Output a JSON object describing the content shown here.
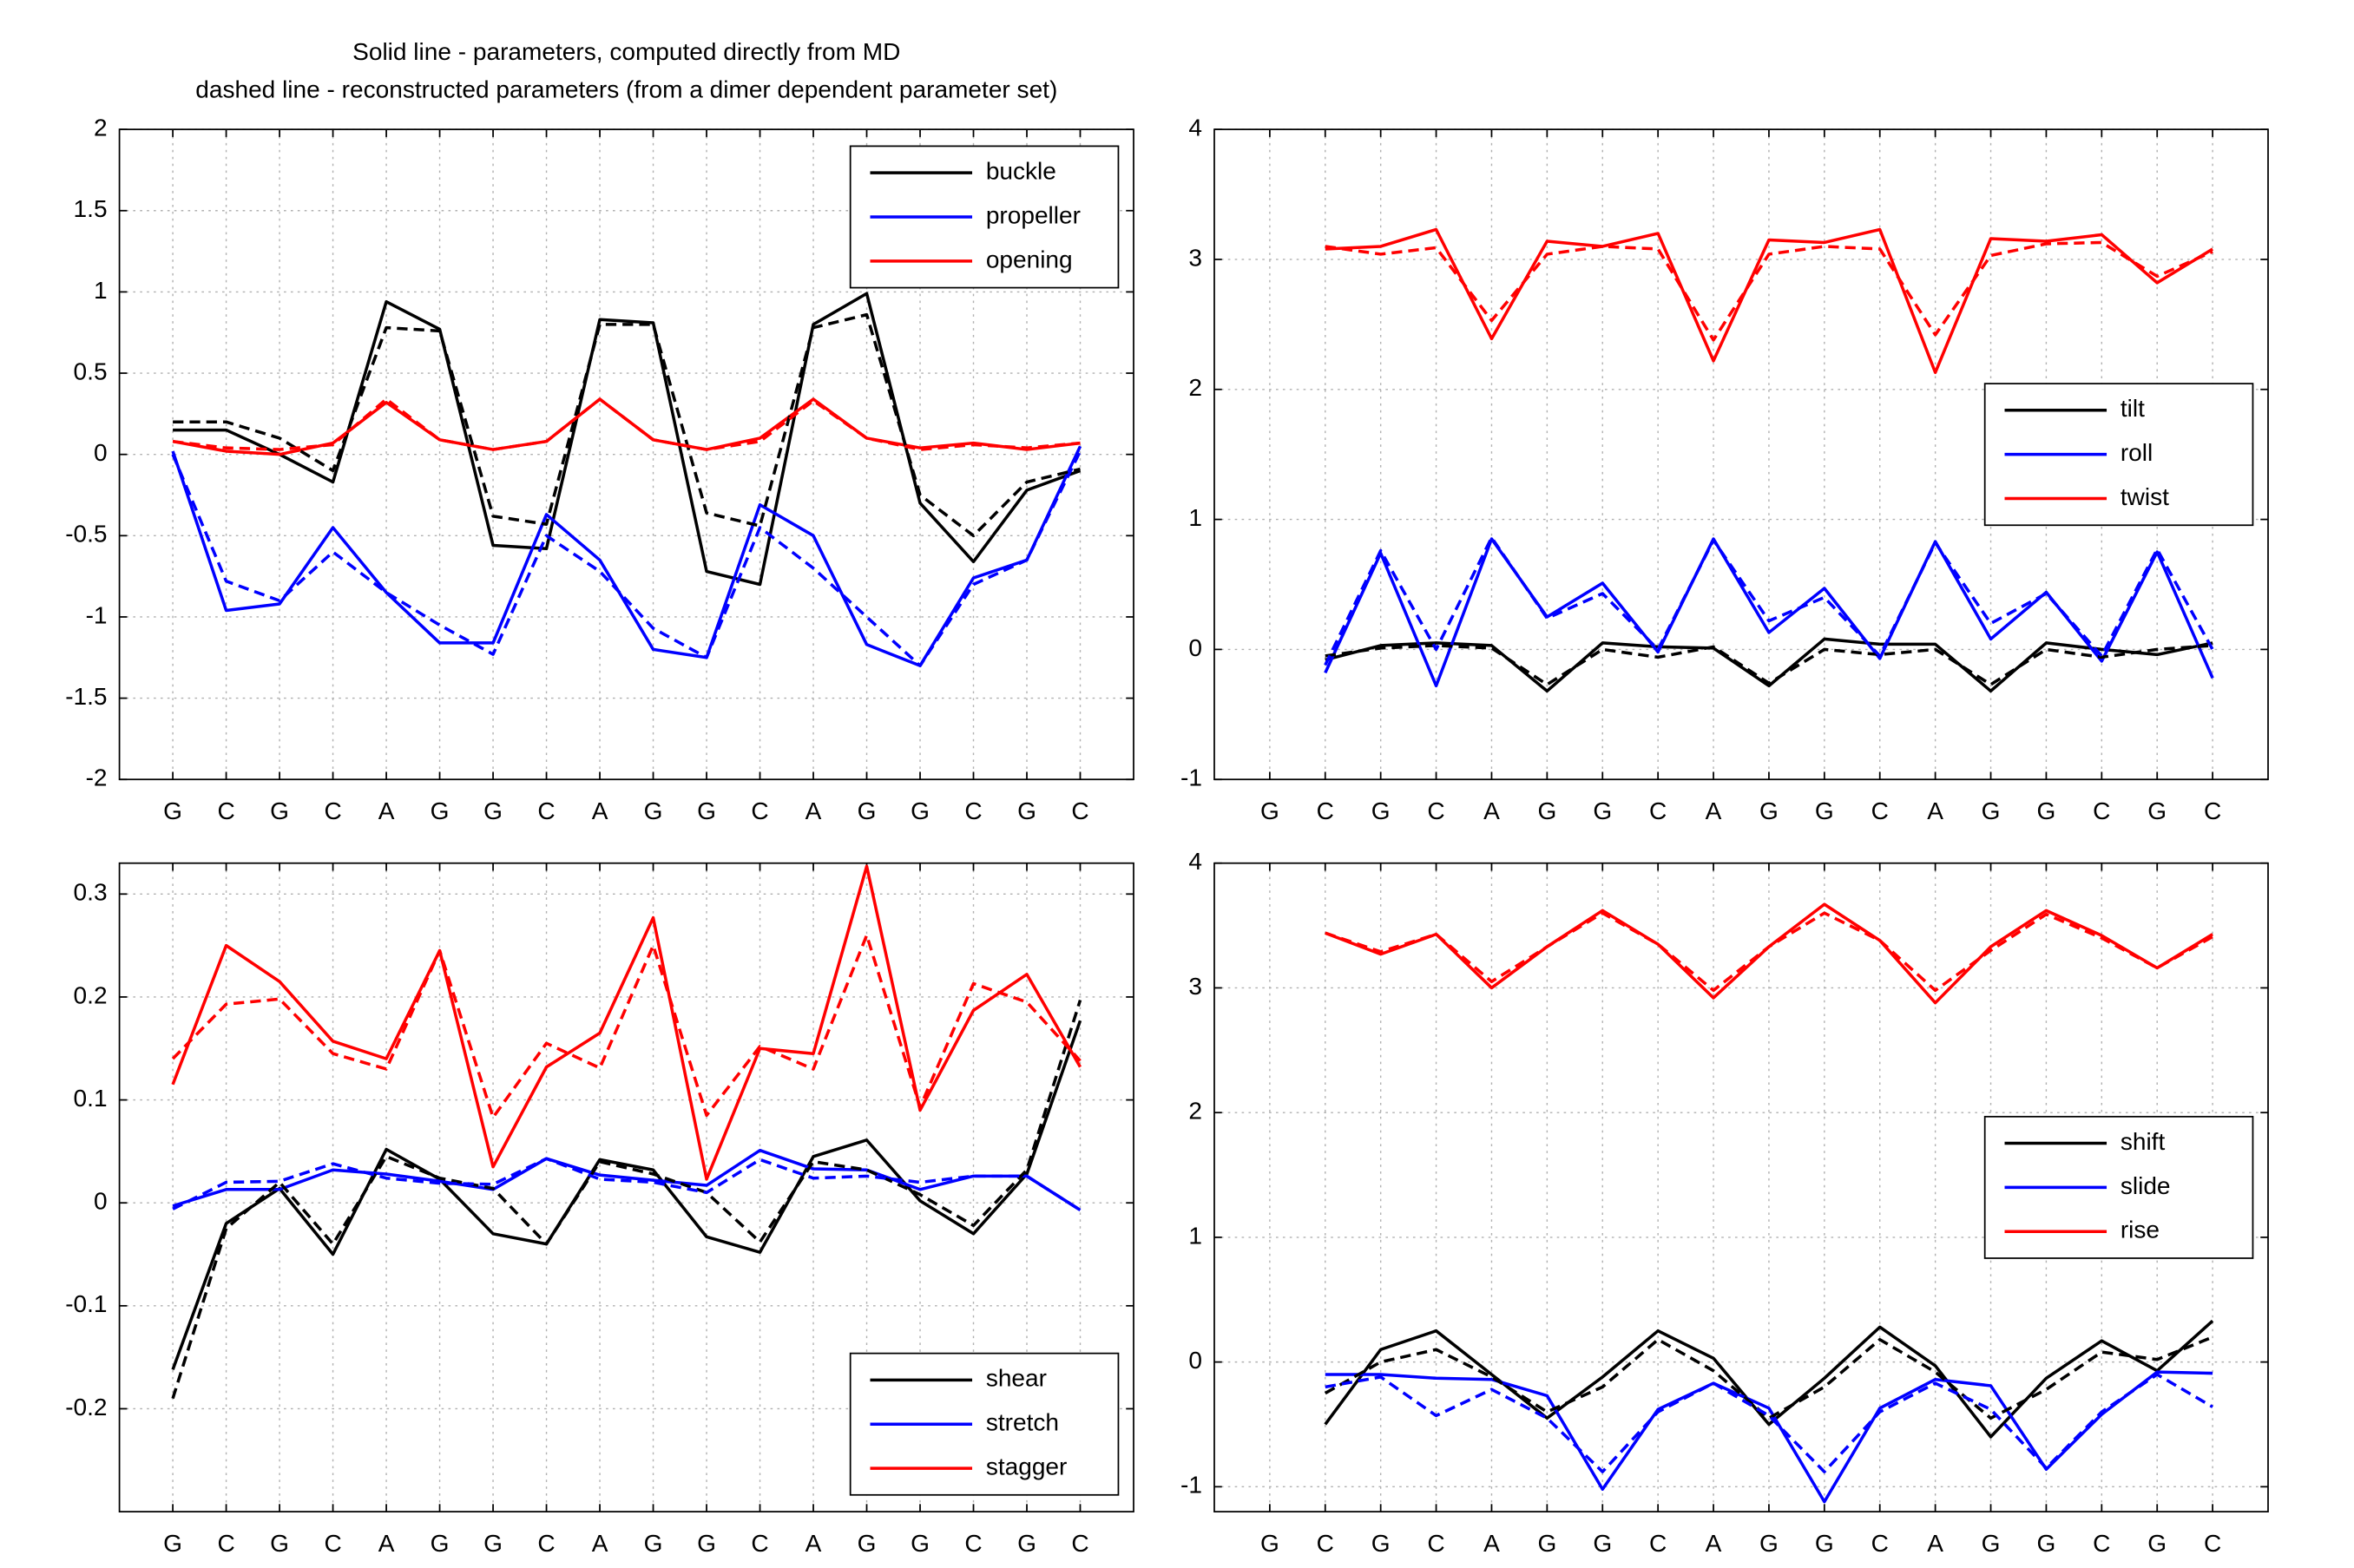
{
  "chart_data": [
    {
      "type": "line",
      "title": [
        "Solid line - parameters, computed directly from MD",
        "dashed line - reconstructed parameters (from a dimer dependent parameter set)"
      ],
      "categories": [
        "G",
        "C",
        "G",
        "C",
        "A",
        "G",
        "G",
        "C",
        "A",
        "G",
        "G",
        "C",
        "A",
        "G",
        "G",
        "C",
        "G",
        "C"
      ],
      "ylim": [
        -2,
        2
      ],
      "yticks": [
        -2,
        -1.5,
        -1,
        -0.5,
        0,
        0.5,
        1,
        1.5,
        2
      ],
      "grid": true,
      "legend": "upper right",
      "series": [
        {
          "name": "buckle",
          "color": "#000000",
          "linestyle": "solid",
          "values": [
            0.15,
            0.15,
            0.0,
            -0.17,
            0.94,
            0.77,
            -0.56,
            -0.58,
            0.83,
            0.81,
            -0.72,
            -0.8,
            0.8,
            0.99,
            -0.3,
            -0.66,
            -0.22,
            -0.1
          ]
        },
        {
          "name": "propeller",
          "color": "#0000ff",
          "linestyle": "solid",
          "values": [
            0.02,
            -0.96,
            -0.92,
            -0.45,
            -0.85,
            -1.16,
            -1.16,
            -0.37,
            -0.65,
            -1.2,
            -1.25,
            -0.31,
            -0.5,
            -1.17,
            -1.3,
            -0.76,
            -0.65,
            0.05
          ]
        },
        {
          "name": "opening",
          "color": "#ff0000",
          "linestyle": "solid",
          "values": [
            0.08,
            0.02,
            0.0,
            0.07,
            0.32,
            0.09,
            0.03,
            0.08,
            0.34,
            0.09,
            0.03,
            0.1,
            0.34,
            0.1,
            0.04,
            0.07,
            0.03,
            0.07
          ]
        },
        {
          "color": "#000000",
          "linestyle": "dashed",
          "values": [
            0.2,
            0.2,
            0.1,
            -0.1,
            0.78,
            0.76,
            -0.38,
            -0.43,
            0.8,
            0.8,
            -0.36,
            -0.44,
            0.78,
            0.86,
            -0.25,
            -0.5,
            -0.17,
            -0.09
          ]
        },
        {
          "color": "#0000ff",
          "linestyle": "dashed",
          "values": [
            0.0,
            -0.78,
            -0.9,
            -0.6,
            -0.85,
            -1.05,
            -1.23,
            -0.5,
            -0.72,
            -1.07,
            -1.25,
            -0.45,
            -0.7,
            -1.0,
            -1.3,
            -0.8,
            -0.65,
            0.02
          ]
        },
        {
          "color": "#ff0000",
          "linestyle": "dashed",
          "values": [
            0.08,
            0.04,
            0.03,
            0.06,
            0.34,
            0.09,
            0.03,
            0.08,
            0.34,
            0.09,
            0.03,
            0.08,
            0.33,
            0.1,
            0.03,
            0.06,
            0.04,
            0.07
          ]
        }
      ]
    },
    {
      "type": "line",
      "categories": [
        "G",
        "C",
        "G",
        "C",
        "A",
        "G",
        "G",
        "C",
        "A",
        "G",
        "G",
        "C",
        "A",
        "G",
        "G",
        "C",
        "G",
        "C"
      ],
      "ylim": [
        -1,
        4
      ],
      "yticks": [
        -1,
        0,
        1,
        2,
        3,
        4
      ],
      "grid": true,
      "legend": "right",
      "series": [
        {
          "name": "tilt",
          "color": "#000000",
          "linestyle": "solid",
          "values": [
            null,
            -0.08,
            0.03,
            0.05,
            0.03,
            -0.32,
            0.05,
            0.02,
            0.01,
            -0.28,
            0.08,
            0.04,
            0.04,
            -0.32,
            0.05,
            0.0,
            -0.04,
            0.05
          ]
        },
        {
          "name": "roll",
          "color": "#0000ff",
          "linestyle": "solid",
          "values": [
            null,
            -0.18,
            0.74,
            -0.28,
            0.85,
            0.25,
            0.51,
            -0.02,
            0.85,
            0.13,
            0.47,
            -0.07,
            0.83,
            0.08,
            0.44,
            -0.09,
            0.75,
            -0.22
          ]
        },
        {
          "name": "twist",
          "color": "#ff0000",
          "linestyle": "solid",
          "values": [
            null,
            3.08,
            3.1,
            3.23,
            2.39,
            3.14,
            3.1,
            3.2,
            2.22,
            3.15,
            3.13,
            3.23,
            2.13,
            3.16,
            3.14,
            3.19,
            2.82,
            3.08
          ]
        },
        {
          "color": "#000000",
          "linestyle": "dashed",
          "values": [
            null,
            -0.05,
            0.01,
            0.03,
            0.01,
            -0.27,
            0.0,
            -0.06,
            0.02,
            -0.26,
            0.0,
            -0.04,
            0.0,
            -0.27,
            0.0,
            -0.06,
            0.0,
            0.03
          ]
        },
        {
          "color": "#0000ff",
          "linestyle": "dashed",
          "values": [
            null,
            -0.12,
            0.76,
            0.0,
            0.86,
            0.24,
            0.43,
            0.0,
            0.84,
            0.22,
            0.4,
            -0.05,
            0.82,
            0.2,
            0.43,
            -0.05,
            0.77,
            0.0
          ]
        },
        {
          "color": "#ff0000",
          "linestyle": "dashed",
          "values": [
            null,
            3.1,
            3.04,
            3.09,
            2.53,
            3.04,
            3.1,
            3.08,
            2.38,
            3.04,
            3.1,
            3.08,
            2.42,
            3.03,
            3.12,
            3.13,
            2.87,
            3.06
          ]
        }
      ]
    },
    {
      "type": "line",
      "categories": [
        "G",
        "C",
        "G",
        "C",
        "A",
        "G",
        "G",
        "C",
        "A",
        "G",
        "G",
        "C",
        "A",
        "G",
        "G",
        "C",
        "G",
        "C"
      ],
      "ylim": [
        -0.3,
        0.33
      ],
      "yticks": [
        -0.2,
        -0.1,
        0,
        0.1,
        0.2,
        0.3
      ],
      "grid": true,
      "legend": "lower right",
      "series": [
        {
          "name": "shear",
          "color": "#000000",
          "linestyle": "solid",
          "values": [
            -0.162,
            -0.02,
            0.014,
            -0.05,
            0.052,
            0.023,
            -0.03,
            -0.04,
            0.042,
            0.032,
            -0.033,
            -0.048,
            0.045,
            0.061,
            0.002,
            -0.03,
            0.028,
            0.177
          ]
        },
        {
          "name": "stretch",
          "color": "#0000ff",
          "linestyle": "solid",
          "values": [
            -0.003,
            0.013,
            0.013,
            0.032,
            0.028,
            0.021,
            0.013,
            0.043,
            0.027,
            0.022,
            0.017,
            0.051,
            0.033,
            0.032,
            0.013,
            0.026,
            0.026,
            -0.007
          ]
        },
        {
          "name": "stagger",
          "color": "#ff0000",
          "linestyle": "solid",
          "values": [
            0.115,
            0.25,
            0.215,
            0.157,
            0.14,
            0.245,
            0.035,
            0.132,
            0.165,
            0.277,
            0.023,
            0.15,
            0.145,
            0.327,
            0.09,
            0.187,
            0.222,
            0.132
          ]
        },
        {
          "color": "#000000",
          "linestyle": "dashed",
          "values": [
            -0.19,
            -0.025,
            0.02,
            -0.04,
            0.045,
            0.024,
            0.014,
            -0.04,
            0.04,
            0.028,
            0.01,
            -0.038,
            0.04,
            0.032,
            0.008,
            -0.022,
            0.032,
            0.197
          ]
        },
        {
          "color": "#0000ff",
          "linestyle": "dashed",
          "values": [
            -0.006,
            0.02,
            0.021,
            0.038,
            0.024,
            0.019,
            0.018,
            0.043,
            0.023,
            0.02,
            0.01,
            0.042,
            0.024,
            0.026,
            0.02,
            0.026,
            0.026,
            -0.007
          ]
        },
        {
          "color": "#ff0000",
          "linestyle": "dashed",
          "values": [
            0.14,
            0.193,
            0.198,
            0.145,
            0.13,
            0.245,
            0.083,
            0.155,
            0.131,
            0.25,
            0.085,
            0.152,
            0.13,
            0.26,
            0.093,
            0.213,
            0.195,
            0.138
          ]
        }
      ]
    },
    {
      "type": "line",
      "categories": [
        "G",
        "C",
        "G",
        "C",
        "A",
        "G",
        "G",
        "C",
        "A",
        "G",
        "G",
        "C",
        "A",
        "G",
        "G",
        "C",
        "G",
        "C"
      ],
      "ylim": [
        -1.2,
        4
      ],
      "yticks": [
        -1,
        0,
        1,
        2,
        3,
        4
      ],
      "grid": true,
      "legend": "right",
      "series": [
        {
          "name": "shift",
          "color": "#000000",
          "linestyle": "solid",
          "values": [
            null,
            -0.5,
            0.1,
            0.25,
            -0.1,
            -0.45,
            -0.12,
            0.25,
            0.03,
            -0.5,
            -0.13,
            0.28,
            -0.03,
            -0.6,
            -0.13,
            0.17,
            -0.07,
            0.33
          ]
        },
        {
          "name": "slide",
          "color": "#0000ff",
          "linestyle": "solid",
          "values": [
            null,
            -0.1,
            -0.1,
            -0.13,
            -0.14,
            -0.27,
            -1.02,
            -0.38,
            -0.17,
            -0.37,
            -1.12,
            -0.37,
            -0.14,
            -0.19,
            -0.86,
            -0.42,
            -0.08,
            -0.09
          ]
        },
        {
          "name": "rise",
          "color": "#ff0000",
          "linestyle": "solid",
          "values": [
            null,
            3.44,
            3.27,
            3.43,
            3.0,
            3.33,
            3.62,
            3.35,
            2.92,
            3.33,
            3.67,
            3.38,
            2.88,
            3.33,
            3.62,
            3.42,
            3.16,
            3.43
          ]
        },
        {
          "color": "#000000",
          "linestyle": "dashed",
          "values": [
            null,
            -0.25,
            0.0,
            0.1,
            -0.12,
            -0.4,
            -0.2,
            0.18,
            -0.07,
            -0.45,
            -0.2,
            0.18,
            -0.08,
            -0.45,
            -0.22,
            0.08,
            0.02,
            0.2
          ]
        },
        {
          "color": "#0000ff",
          "linestyle": "dashed",
          "values": [
            null,
            -0.2,
            -0.12,
            -0.43,
            -0.22,
            -0.45,
            -0.88,
            -0.4,
            -0.17,
            -0.43,
            -0.88,
            -0.4,
            -0.17,
            -0.38,
            -0.85,
            -0.4,
            -0.1,
            -0.36
          ]
        },
        {
          "color": "#ff0000",
          "linestyle": "dashed",
          "values": [
            null,
            3.44,
            3.29,
            3.43,
            3.05,
            3.33,
            3.6,
            3.35,
            2.98,
            3.33,
            3.6,
            3.38,
            2.98,
            3.3,
            3.59,
            3.4,
            3.16,
            3.41
          ]
        }
      ]
    }
  ]
}
